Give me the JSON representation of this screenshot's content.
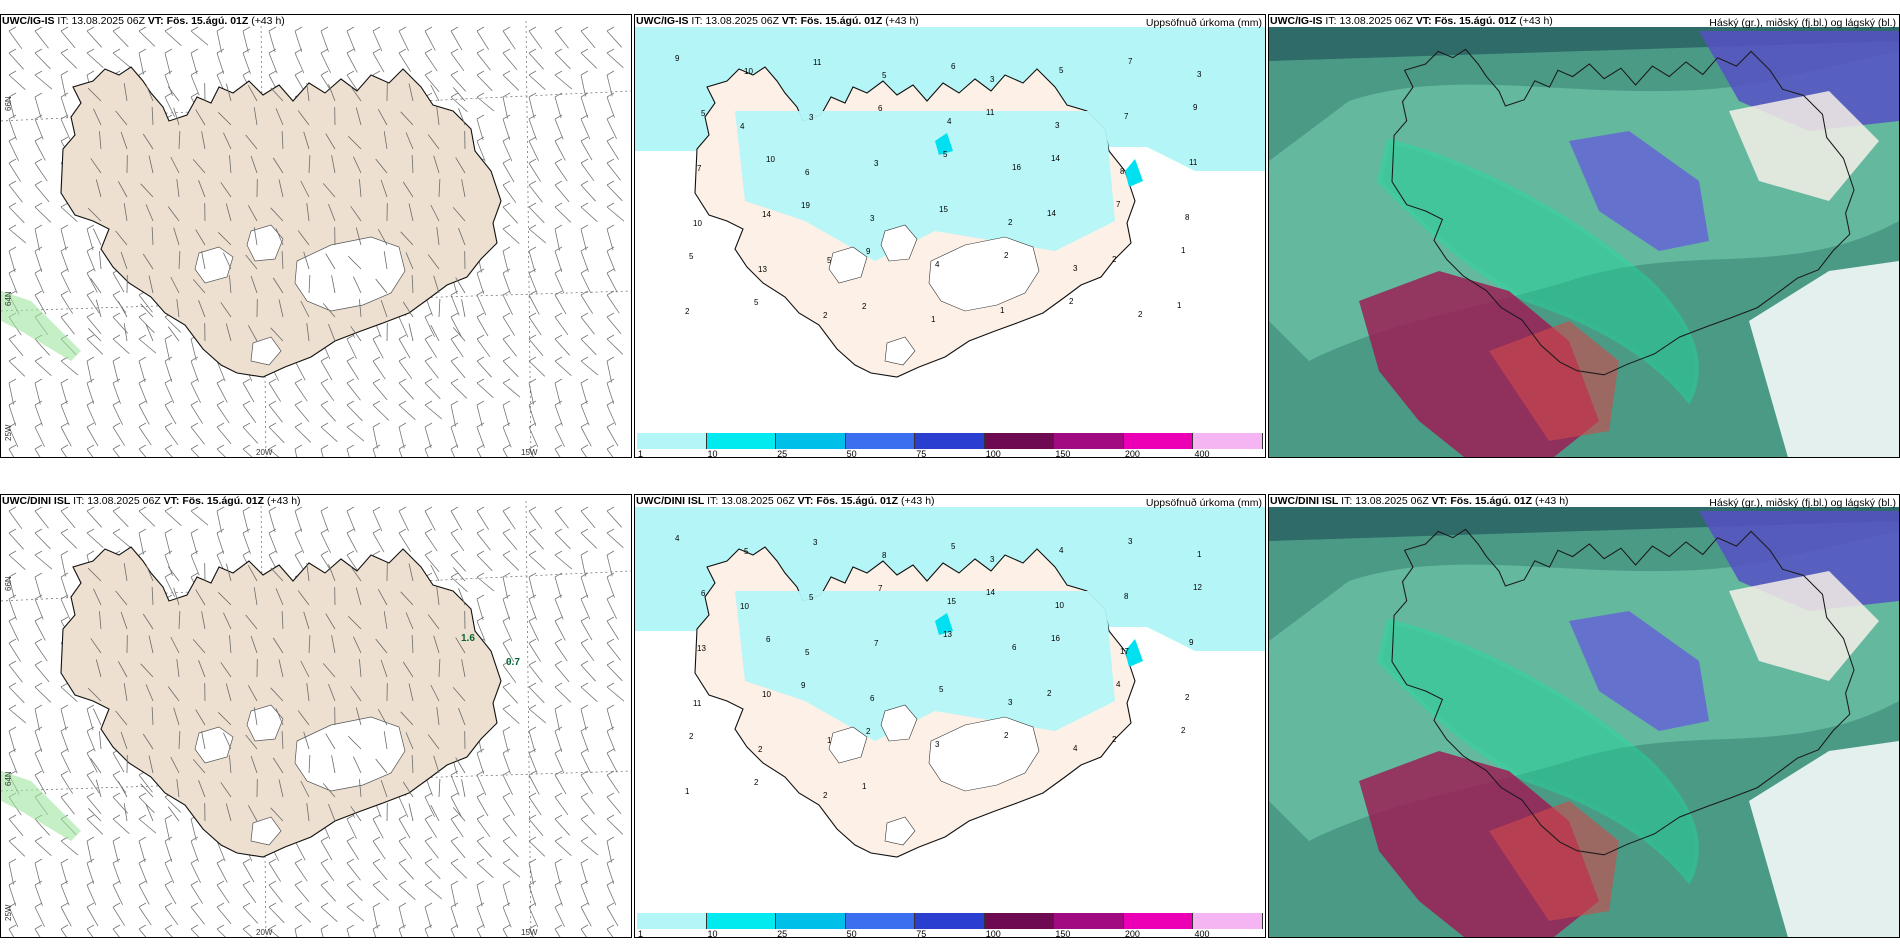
{
  "panels": [
    {
      "model": "UWC/IG-IS",
      "it_label": "IT:",
      "it": "13.08.2025 06Z",
      "vt_label": "VT:",
      "vt": "Fös. 15.ágú. 01Z",
      "lead": "(+43 h)",
      "right": "",
      "kind": "wind",
      "values": []
    },
    {
      "model": "UWC/IG-IS",
      "it_label": "IT:",
      "it": "13.08.2025 06Z",
      "vt_label": "VT:",
      "vt": "Fös. 15.ágú. 01Z",
      "lead": "(+43 h)",
      "right": "Uppsöfnuð úrkoma (mm)",
      "kind": "precip",
      "values": [
        "9",
        "10",
        "11",
        "5",
        "6",
        "3",
        "5",
        "7",
        "3",
        "5",
        "4",
        "3",
        "6",
        "4",
        "11",
        "3",
        "7",
        "9",
        "7",
        "10",
        "6",
        "3",
        "5",
        "16",
        "14",
        "8",
        "11",
        "10",
        "14",
        "19",
        "3",
        "15",
        "2",
        "14",
        "7",
        "8",
        "5",
        "13",
        "5",
        "9",
        "4",
        "2",
        "3",
        "2",
        "1",
        "2",
        "5",
        "2",
        "2",
        "1",
        "1",
        "2",
        "2",
        "1"
      ]
    },
    {
      "model": "UWC/IG-IS",
      "it_label": "IT:",
      "it": "13.08.2025 06Z",
      "vt_label": "VT:",
      "vt": "Fös. 15.ágú. 01Z",
      "lead": "(+43 h)",
      "right": "Háský (gr.), miðský (fj.bl.) og lágský (bl.)",
      "kind": "cloud",
      "values": []
    },
    {
      "model": "UWC/DINI ISL",
      "it_label": "IT:",
      "it": "13.08.2025 06Z",
      "vt_label": "VT:",
      "vt": "Fös. 15.ágú. 01Z",
      "lead": "(+43 h)",
      "right": "",
      "kind": "wind",
      "values": [
        "1.6",
        "0.7"
      ]
    },
    {
      "model": "UWC/DINI ISL",
      "it_label": "IT:",
      "it": "13.08.2025 06Z",
      "vt_label": "VT:",
      "vt": "Fös. 15.ágú. 01Z",
      "lead": "(+43 h)",
      "right": "Uppsöfnuð úrkoma (mm)",
      "kind": "precip",
      "values": [
        "4",
        "5",
        "3",
        "8",
        "5",
        "3",
        "4",
        "3",
        "1",
        "6",
        "10",
        "5",
        "7",
        "15",
        "14",
        "10",
        "8",
        "12",
        "13",
        "6",
        "5",
        "7",
        "13",
        "6",
        "16",
        "17",
        "9",
        "11",
        "10",
        "9",
        "6",
        "5",
        "3",
        "2",
        "4",
        "2",
        "2",
        "2",
        "1",
        "2",
        "3",
        "2",
        "4",
        "2",
        "2",
        "1",
        "2",
        "2",
        "1"
      ]
    },
    {
      "model": "UWC/DINI ISL",
      "it_label": "IT:",
      "it": "13.08.2025 06Z",
      "vt_label": "VT:",
      "vt": "Fös. 15.ágú. 01Z",
      "lead": "(+43 h)",
      "right": "Háský (gr.), miðský (fj.bl.) og lágský (bl.)",
      "kind": "cloud",
      "values": []
    }
  ],
  "wind_axes": {
    "lat1": "66N",
    "lat2": "64N",
    "lat3": "25W",
    "lon1": "20W",
    "lon2": "15W"
  },
  "precip_legend": {
    "labels": [
      "1",
      "10",
      "25",
      "50",
      "75",
      "100",
      "150",
      "200",
      "400"
    ],
    "colors": [
      "#b4f6f8",
      "#00eaf0",
      "#00bfe8",
      "#3b6ff0",
      "#2a3fcf",
      "#6e0a52",
      "#a20a82",
      "#ec00b5",
      "#f5b4f2"
    ]
  },
  "colors": {
    "land": "#eee0d0",
    "precip_land": "#fdf0e6",
    "sea_precip": "#b4f6f8",
    "glacier": "#ffffff"
  }
}
